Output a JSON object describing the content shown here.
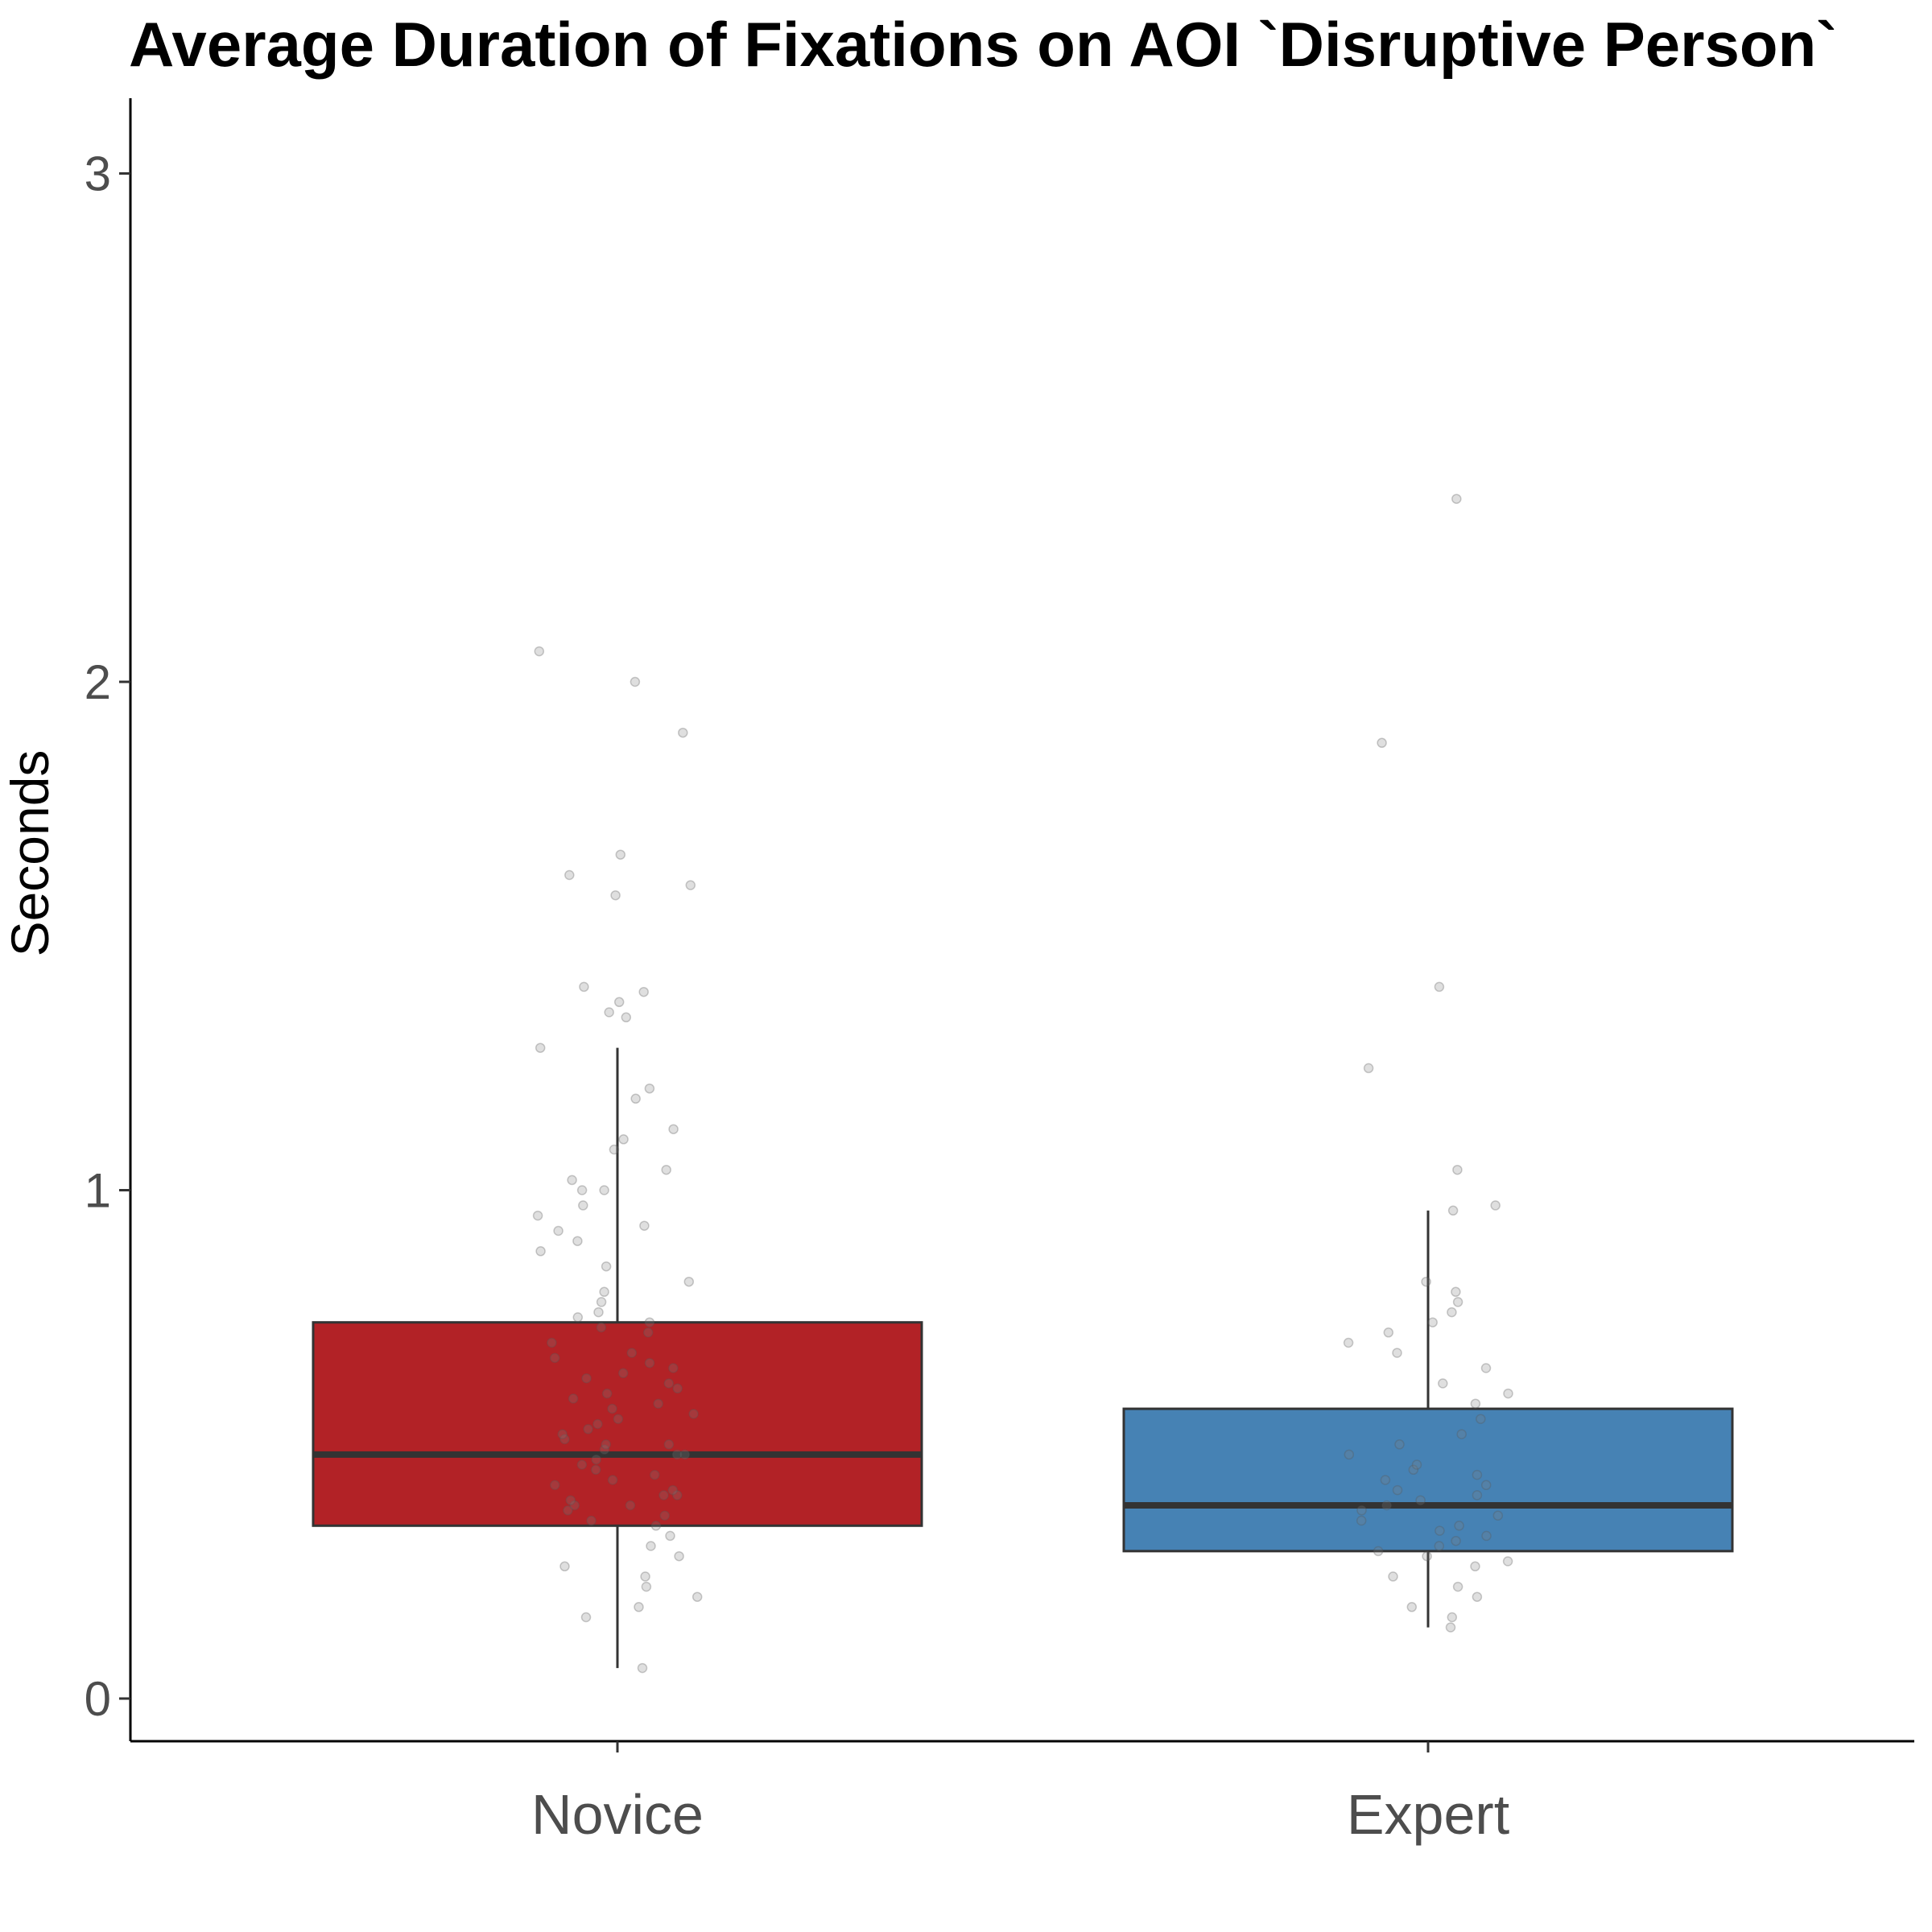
{
  "chart_data": {
    "type": "boxplot",
    "title": "Average Duration of Fixations on AOI `Disruptive Person`",
    "xlabel": "",
    "ylabel": "Seconds",
    "ylim": [
      -0.15,
      3.15
    ],
    "yticks": [
      0,
      1,
      2,
      3
    ],
    "grid": false,
    "legend": "none",
    "categories": [
      "Novice",
      "Expert"
    ],
    "colors": {
      "Novice": "#b22226",
      "Expert": "#4682b4",
      "points": "#808080",
      "box_stroke": "#333333"
    },
    "boxes": [
      {
        "category": "Novice",
        "whisker_low": 0.06,
        "q1": 0.34,
        "median": 0.48,
        "q3": 0.74,
        "whisker_high": 1.28
      },
      {
        "category": "Expert",
        "whisker_low": 0.14,
        "q1": 0.29,
        "median": 0.38,
        "q3": 0.57,
        "whisker_high": 0.96
      }
    ],
    "points": {
      "Novice": [
        0.06,
        0.16,
        0.18,
        0.2,
        0.22,
        0.24,
        0.26,
        0.28,
        0.3,
        0.32,
        0.34,
        0.35,
        0.36,
        0.37,
        0.38,
        0.38,
        0.39,
        0.4,
        0.4,
        0.41,
        0.42,
        0.43,
        0.44,
        0.45,
        0.46,
        0.47,
        0.48,
        0.48,
        0.49,
        0.5,
        0.5,
        0.51,
        0.52,
        0.53,
        0.54,
        0.55,
        0.56,
        0.57,
        0.58,
        0.59,
        0.6,
        0.61,
        0.62,
        0.63,
        0.64,
        0.65,
        0.66,
        0.67,
        0.68,
        0.7,
        0.72,
        0.73,
        0.74,
        0.75,
        0.76,
        0.78,
        0.8,
        0.82,
        0.85,
        0.88,
        0.9,
        0.92,
        0.93,
        0.95,
        0.97,
        1.0,
        1.0,
        1.02,
        1.04,
        1.08,
        1.1,
        1.12,
        1.18,
        1.2,
        1.28,
        1.34,
        1.35,
        1.37,
        1.39,
        1.4,
        1.58,
        1.6,
        1.62,
        1.66,
        1.9,
        2.0,
        2.06
      ],
      "Expert": [
        0.14,
        0.16,
        0.18,
        0.2,
        0.22,
        0.24,
        0.26,
        0.27,
        0.28,
        0.29,
        0.3,
        0.31,
        0.32,
        0.33,
        0.34,
        0.35,
        0.36,
        0.37,
        0.38,
        0.39,
        0.4,
        0.41,
        0.42,
        0.43,
        0.44,
        0.45,
        0.46,
        0.48,
        0.5,
        0.52,
        0.55,
        0.58,
        0.6,
        0.62,
        0.65,
        0.68,
        0.7,
        0.72,
        0.74,
        0.76,
        0.78,
        0.8,
        0.82,
        0.96,
        0.97,
        1.04,
        1.24,
        1.4,
        1.88,
        2.36
      ]
    }
  }
}
